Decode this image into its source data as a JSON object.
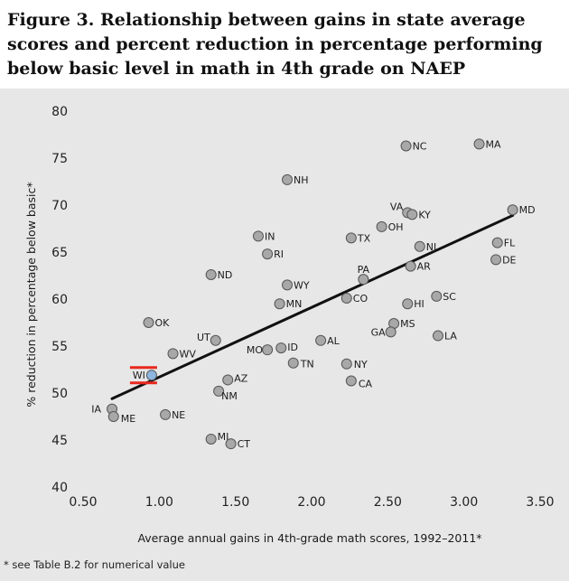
{
  "chart_data": {
    "type": "scatter",
    "title": "Figure 3. Relationship between gains in state average scores and percent reduction in percentage performing below basic level in math in 4th grade on NAEP",
    "xlabel": "Average annual gains in 4th-grade math scores, 1992–2011*",
    "ylabel": "% reduction in percentage below basic*",
    "footnote": "* see Table B.2 for numerical value",
    "xlim": [
      0.5,
      3.5
    ],
    "ylim": [
      40,
      80
    ],
    "x_ticks": [
      "0.50",
      "1.00",
      "1.50",
      "2.00",
      "2.50",
      "3.00",
      "3.50"
    ],
    "y_ticks": [
      "40",
      "45",
      "50",
      "55",
      "60",
      "65",
      "70",
      "75",
      "80"
    ],
    "grid": false,
    "legend": "none",
    "colors": {
      "point": "#a8a8a8",
      "highlight_point": "#8eb6e0",
      "highlight_marker": "#e8281e",
      "trend": "#111111"
    },
    "trendline": {
      "x": [
        0.69,
        3.32
      ],
      "y": [
        49.4,
        68.9
      ]
    },
    "highlight": "WI",
    "points": [
      {
        "label": "NC",
        "x": 2.62,
        "y": 76.3
      },
      {
        "label": "MA",
        "x": 3.1,
        "y": 76.5
      },
      {
        "label": "NH",
        "x": 1.84,
        "y": 72.7
      },
      {
        "label": "VA",
        "x": 2.63,
        "y": 69.2
      },
      {
        "label": "KY",
        "x": 2.66,
        "y": 69.0
      },
      {
        "label": "MD",
        "x": 3.32,
        "y": 69.5
      },
      {
        "label": "OH",
        "x": 2.46,
        "y": 67.7
      },
      {
        "label": "IN",
        "x": 1.65,
        "y": 66.7
      },
      {
        "label": "TX",
        "x": 2.26,
        "y": 66.5
      },
      {
        "label": "NJ",
        "x": 2.71,
        "y": 65.6
      },
      {
        "label": "FL",
        "x": 3.22,
        "y": 66.0
      },
      {
        "label": "RI",
        "x": 1.71,
        "y": 64.8
      },
      {
        "label": "DE",
        "x": 3.21,
        "y": 64.2
      },
      {
        "label": "AR",
        "x": 2.65,
        "y": 63.5
      },
      {
        "label": "ND",
        "x": 1.34,
        "y": 62.6
      },
      {
        "label": "PA",
        "x": 2.34,
        "y": 62.1
      },
      {
        "label": "WY",
        "x": 1.84,
        "y": 61.5
      },
      {
        "label": "SC",
        "x": 2.82,
        "y": 60.3
      },
      {
        "label": "CO",
        "x": 2.23,
        "y": 60.1
      },
      {
        "label": "MN",
        "x": 1.79,
        "y": 59.5
      },
      {
        "label": "HI",
        "x": 2.63,
        "y": 59.5
      },
      {
        "label": "OK",
        "x": 0.93,
        "y": 57.5
      },
      {
        "label": "MS",
        "x": 2.54,
        "y": 57.4
      },
      {
        "label": "GA",
        "x": 2.52,
        "y": 56.5
      },
      {
        "label": "LA",
        "x": 2.83,
        "y": 56.1
      },
      {
        "label": "UT",
        "x": 1.37,
        "y": 55.6
      },
      {
        "label": "AL",
        "x": 2.06,
        "y": 55.6
      },
      {
        "label": "MO",
        "x": 1.71,
        "y": 54.6
      },
      {
        "label": "ID",
        "x": 1.8,
        "y": 54.8
      },
      {
        "label": "WV",
        "x": 1.09,
        "y": 54.2
      },
      {
        "label": "TN",
        "x": 1.88,
        "y": 53.2
      },
      {
        "label": "NY",
        "x": 2.23,
        "y": 53.1
      },
      {
        "label": "WI",
        "x": 0.95,
        "y": 51.9
      },
      {
        "label": "AZ",
        "x": 1.45,
        "y": 51.4
      },
      {
        "label": "CA",
        "x": 2.26,
        "y": 51.3
      },
      {
        "label": "NM",
        "x": 1.39,
        "y": 50.2
      },
      {
        "label": "IA",
        "x": 0.69,
        "y": 48.3
      },
      {
        "label": "ME",
        "x": 0.7,
        "y": 47.5
      },
      {
        "label": "NE",
        "x": 1.04,
        "y": 47.7
      },
      {
        "label": "MI",
        "x": 1.34,
        "y": 45.1
      },
      {
        "label": "CT",
        "x": 1.47,
        "y": 44.6
      }
    ]
  }
}
